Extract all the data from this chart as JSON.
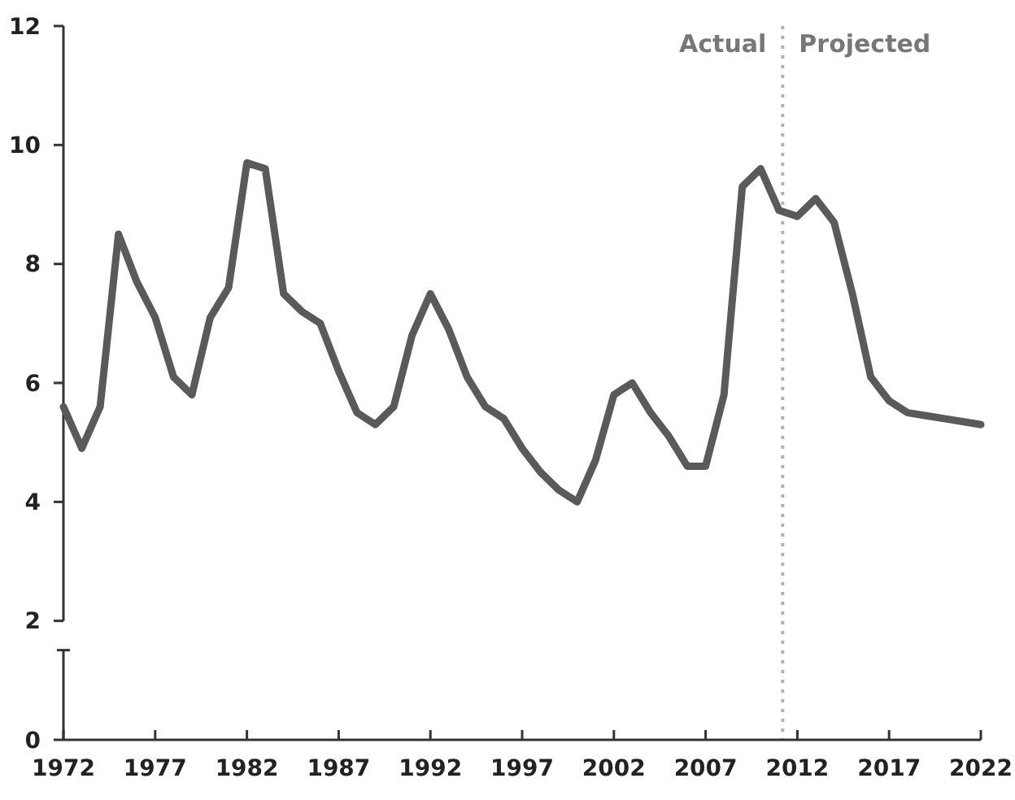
{
  "chart_data": {
    "type": "line",
    "x": [
      1972,
      1973,
      1974,
      1975,
      1976,
      1977,
      1978,
      1979,
      1980,
      1981,
      1982,
      1983,
      1984,
      1985,
      1986,
      1987,
      1988,
      1989,
      1990,
      1991,
      1992,
      1993,
      1994,
      1995,
      1996,
      1997,
      1998,
      1999,
      2000,
      2001,
      2002,
      2003,
      2004,
      2005,
      2006,
      2007,
      2008,
      2009,
      2010,
      2011,
      2012,
      2013,
      2014,
      2015,
      2016,
      2017,
      2018,
      2019,
      2020,
      2021,
      2022
    ],
    "series": [
      {
        "color": "#5a5a5a",
        "values": [
          5.6,
          4.9,
          5.6,
          8.5,
          7.7,
          7.1,
          6.1,
          5.8,
          7.1,
          7.6,
          9.7,
          9.6,
          7.5,
          7.2,
          7.0,
          6.2,
          5.5,
          5.3,
          5.6,
          6.8,
          7.5,
          6.9,
          6.1,
          5.6,
          5.4,
          4.9,
          4.5,
          4.2,
          4.0,
          4.7,
          5.8,
          6.0,
          5.5,
          5.1,
          4.6,
          4.6,
          5.8,
          9.3,
          9.6,
          8.9,
          8.8,
          9.1,
          8.7,
          7.5,
          6.1,
          5.7,
          5.5,
          5.45,
          5.4,
          5.35,
          5.3
        ]
      }
    ],
    "xlim": [
      1972,
      2022
    ],
    "xticks": [
      1972,
      1977,
      1982,
      1987,
      1992,
      1997,
      2002,
      2007,
      2012,
      2017,
      2022
    ],
    "ylim": [
      0,
      12
    ],
    "yticks": [
      0,
      2,
      4,
      6,
      8,
      10,
      12
    ],
    "ref_lines": [
      {
        "axis": "x",
        "value": 2011.2,
        "color": "#b0b0b0",
        "line_style": "dotted"
      }
    ],
    "annotations": [
      "Actual",
      "Projected"
    ],
    "grid": false,
    "marker": "none",
    "line_style": "solid"
  }
}
